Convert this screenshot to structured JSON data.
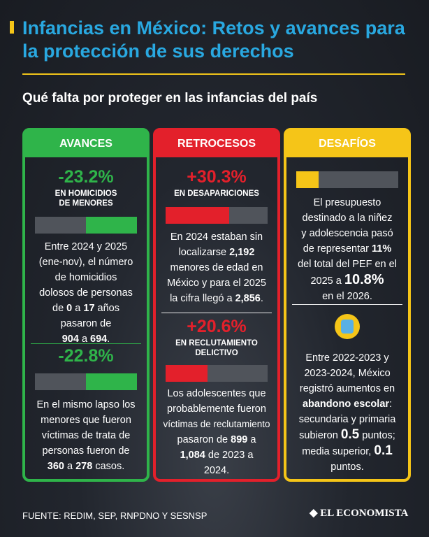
{
  "title": "Infancias en México: Retos y avances para la protección de sus derechos",
  "subtitle": "Qué falta por proteger en las infancias del país",
  "columns": {
    "avances": {
      "header": "AVANCES",
      "s1": {
        "pct": "-23.2%",
        "label1": "EN HOMICIDIOS",
        "label2": "DE MENORES",
        "bar_fraction": 0.5,
        "t1": "Entre 2024 y 2025",
        "t2": "(ene-nov), el número",
        "t3": "de homicidios",
        "t4": "dolosos de personas",
        "t5a": "de ",
        "t5b": "0",
        "t5c": " a ",
        "t5d": "17",
        "t5e": " años",
        "t6": "pasaron de",
        "t7a": "904",
        "t7b": " a ",
        "t7c": "694",
        "t7d": "."
      },
      "s2": {
        "pct": "-22.8%",
        "bar_fraction": 0.5,
        "t1": "En el mismo lapso los",
        "t2": "menores que fueron",
        "t3": "víctimas de trata de",
        "t4": "personas fueron de",
        "t5a": "360",
        "t5b": " a ",
        "t5c": "278",
        "t5d": " casos."
      }
    },
    "retrocesos": {
      "header": "RETROCESOS",
      "s1": {
        "pct": "+30.3%",
        "label1": "EN DESAPARICIONES",
        "bar_fraction": 0.62,
        "t1": "En 2024 estaban sin",
        "t2a": "localizarse ",
        "t2b": "2,192",
        "t3": "menores de edad en",
        "t4": "México y para el 2025",
        "t5a": "la cifra llegó a ",
        "t5b": "2,856",
        "t5c": "."
      },
      "s2": {
        "pct": "+20.6%",
        "label1": "EN RECLUTAMIENTO",
        "label2": "DELICTIVO",
        "bar_fraction": 0.41,
        "t1": "Los adolescentes que",
        "t2": "probablemente fueron",
        "t3": "víctimas de reclutamiento",
        "t4a": "pasaron de ",
        "t4b": "899",
        "t4c": " a",
        "t5a": "1,084",
        "t5b": " de 2023 a",
        "t6": "2024."
      }
    },
    "desafios": {
      "header": "DESAFÍOS",
      "s1": {
        "bar_fraction": 0.22,
        "t1": "El presupuesto",
        "t2": "destinado a la niñez",
        "t3": "y adolescencia pasó",
        "t4a": "de representar ",
        "t4b": "11%",
        "t5": "del total del PEF en el",
        "t6a": "2025 a ",
        "t6b": "10.8%",
        "t7": "en el 2026."
      },
      "s2": {
        "icon": "backpack-icon",
        "t1": "Entre 2022-2023 y",
        "t2": "2023-2024, México",
        "t3": "registró aumentos en",
        "t4a": "abandono escolar",
        "t4b": ":",
        "t5": "secundaria y primaria",
        "t6a": "subieron ",
        "t6b": "0.5",
        "t6c": " puntos;",
        "t7a": "media superior, ",
        "t7b": "0.1",
        "t8": "puntos."
      }
    }
  },
  "footer": "FUENTE: REDIM, SEP, RNPDNO Y SESNSP",
  "logo": "EL ECONOMISTA",
  "colors": {
    "green": "#2fb44a",
    "red": "#e3202b",
    "yellow": "#f5c518",
    "blue": "#29a8e0"
  }
}
